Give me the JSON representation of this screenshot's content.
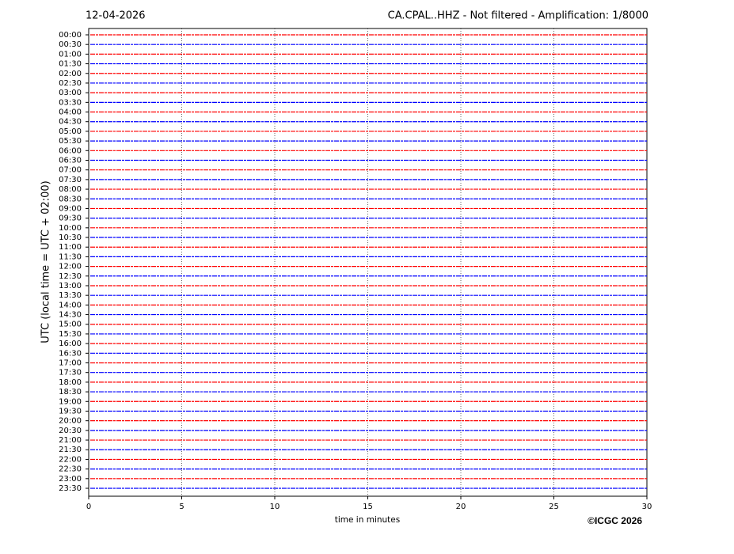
{
  "chart_data": {
    "type": "helicorder",
    "date": "12-04-2026",
    "title": "CA.CPAL..HHZ - Not filtered - Amplification: 1/8000",
    "xlabel": "time in minutes",
    "ylabel": "UTC (local time = UTC + 02:00)",
    "copyright": "©ICGC 2026",
    "categories": [
      "00:00",
      "00:30",
      "01:00",
      "01:30",
      "02:00",
      "02:30",
      "03:00",
      "03:30",
      "04:00",
      "04:30",
      "05:00",
      "05:30",
      "06:00",
      "06:30",
      "07:00",
      "07:30",
      "08:00",
      "08:30",
      "09:00",
      "09:30",
      "10:00",
      "10:30",
      "11:00",
      "11:30",
      "12:00",
      "12:30",
      "13:00",
      "13:30",
      "14:00",
      "14:30",
      "15:00",
      "15:30",
      "16:00",
      "16:30",
      "17:00",
      "17:30",
      "18:00",
      "18:30",
      "19:00",
      "19:30",
      "20:00",
      "20:30",
      "21:00",
      "21:30",
      "22:00",
      "22:30",
      "23:00",
      "23:30"
    ],
    "xlim": [
      0,
      30
    ],
    "xticks": [
      0,
      5,
      10,
      15,
      20,
      25,
      30
    ],
    "grid": true,
    "colors": [
      "#ff0000",
      "#0000ff"
    ]
  }
}
